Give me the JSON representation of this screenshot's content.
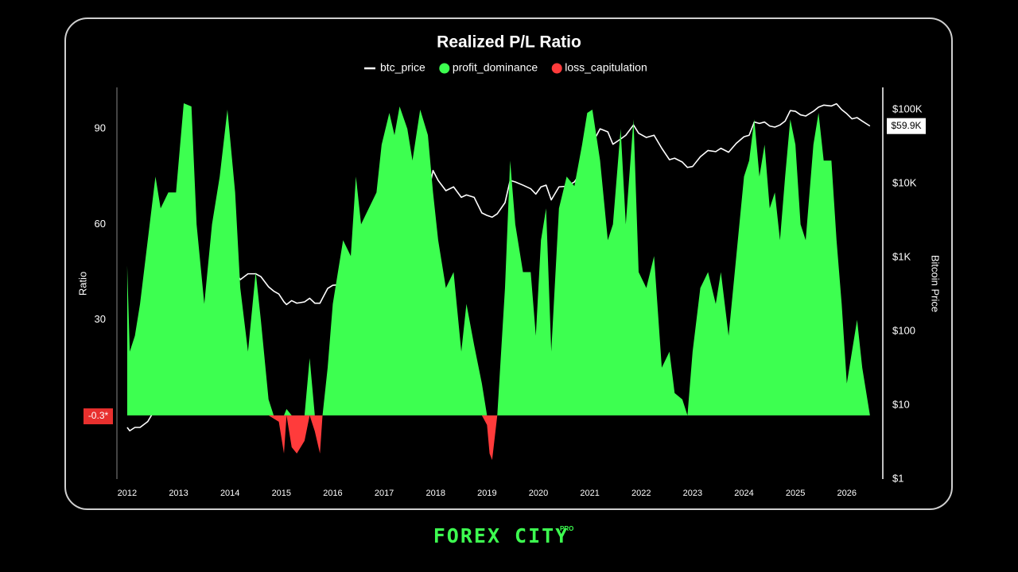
{
  "chart_data": {
    "type": "area",
    "title": "Realized P/L Ratio",
    "ylabel": "Ratio",
    "y2label": "Bitcoin Price",
    "x": [
      2012.0,
      2012.05,
      2012.15,
      2012.25,
      2012.4,
      2012.55,
      2012.65,
      2012.8,
      2012.95,
      2013.1,
      2013.25,
      2013.35,
      2013.5,
      2013.65,
      2013.8,
      2013.95,
      2014.1,
      2014.2,
      2014.35,
      2014.5,
      2014.6,
      2014.75,
      2014.85,
      2014.95,
      2015.05,
      2015.1,
      2015.2,
      2015.3,
      2015.45,
      2015.55,
      2015.65,
      2015.75,
      2015.8,
      2015.9,
      2016.0,
      2016.2,
      2016.35,
      2016.45,
      2016.55,
      2016.7,
      2016.85,
      2016.95,
      2017.1,
      2017.2,
      2017.3,
      2017.45,
      2017.55,
      2017.7,
      2017.85,
      2017.95,
      2018.05,
      2018.2,
      2018.35,
      2018.5,
      2018.6,
      2018.75,
      2018.9,
      2019.0,
      2019.05,
      2019.1,
      2019.2,
      2019.35,
      2019.45,
      2019.55,
      2019.7,
      2019.85,
      2019.95,
      2020.05,
      2020.15,
      2020.25,
      2020.4,
      2020.55,
      2020.7,
      2020.85,
      2020.95,
      2021.05,
      2021.2,
      2021.35,
      2021.45,
      2021.6,
      2021.7,
      2021.85,
      2021.95,
      2022.1,
      2022.25,
      2022.4,
      2022.55,
      2022.65,
      2022.8,
      2022.9,
      2023.0,
      2023.15,
      2023.3,
      2023.45,
      2023.55,
      2023.7,
      2023.85,
      2024.0,
      2024.1,
      2024.2,
      2024.3,
      2024.4,
      2024.5,
      2024.6,
      2024.7,
      2024.8,
      2024.9,
      2025.0,
      2025.1,
      2025.2,
      2025.35,
      2025.45,
      2025.55,
      2025.7,
      2025.8,
      2025.9,
      2026.0,
      2026.1,
      2026.2,
      2026.3,
      2026.45
    ],
    "series": [
      {
        "name": "btc_price",
        "color": "#ffffff",
        "axis": "y2",
        "mark": "line",
        "values": [
          5,
          4.5,
          5,
          5,
          6,
          9,
          11,
          12,
          13,
          30,
          120,
          110,
          90,
          110,
          200,
          800,
          650,
          500,
          600,
          600,
          550,
          400,
          350,
          320,
          250,
          230,
          260,
          240,
          250,
          280,
          240,
          240,
          280,
          380,
          420,
          430,
          450,
          650,
          650,
          620,
          700,
          950,
          1000,
          1100,
          1300,
          2500,
          2600,
          4200,
          7000,
          15000,
          11000,
          8000,
          9000,
          6500,
          7000,
          6500,
          4000,
          3700,
          3600,
          3500,
          3900,
          5500,
          11000,
          10500,
          9500,
          8500,
          7200,
          9000,
          9500,
          6000,
          9000,
          9200,
          10500,
          15000,
          25000,
          35000,
          55000,
          50000,
          34000,
          40000,
          45000,
          62000,
          48000,
          42000,
          45000,
          30000,
          21000,
          22000,
          19500,
          16500,
          17000,
          23000,
          28000,
          27000,
          30000,
          26500,
          35000,
          43000,
          45000,
          68000,
          65000,
          68000,
          60000,
          58000,
          62000,
          70000,
          97000,
          95000,
          85000,
          82000,
          95000,
          108000,
          115000,
          112000,
          120000,
          100000,
          88000,
          75000,
          78000,
          70000,
          60000
        ]
      },
      {
        "name": "profit_dominance",
        "color": "#3dff50",
        "mark": "area",
        "values": [
          47,
          20,
          25,
          35,
          55,
          75,
          65,
          70,
          70,
          98,
          97,
          60,
          35,
          60,
          75,
          96,
          70,
          40,
          20,
          45,
          30,
          5,
          0,
          0,
          0,
          2,
          0,
          0,
          0,
          18,
          0,
          0,
          0,
          15,
          35,
          55,
          50,
          75,
          60,
          65,
          70,
          85,
          95,
          88,
          97,
          90,
          80,
          96,
          88,
          70,
          55,
          40,
          45,
          20,
          35,
          22,
          10,
          0,
          0,
          0,
          0,
          40,
          80,
          60,
          45,
          45,
          25,
          55,
          65,
          20,
          65,
          75,
          72,
          85,
          95,
          96,
          80,
          55,
          60,
          90,
          60,
          93,
          45,
          40,
          50,
          15,
          20,
          7,
          5,
          0,
          20,
          40,
          45,
          35,
          45,
          25,
          50,
          75,
          80,
          93,
          75,
          85,
          65,
          70,
          55,
          75,
          93,
          85,
          60,
          55,
          85,
          95,
          80,
          80,
          55,
          35,
          10,
          20,
          30,
          15,
          0
        ]
      },
      {
        "name": "loss_capitulation",
        "color": "#ff3b3b",
        "mark": "area",
        "values": [
          null,
          null,
          null,
          null,
          null,
          null,
          null,
          null,
          null,
          null,
          null,
          null,
          null,
          null,
          null,
          null,
          null,
          null,
          null,
          null,
          null,
          0,
          -1,
          -2,
          -12,
          0,
          -10,
          -12,
          -8,
          0,
          -5,
          -12,
          0,
          null,
          null,
          null,
          null,
          null,
          null,
          null,
          null,
          null,
          null,
          null,
          null,
          null,
          null,
          null,
          null,
          null,
          null,
          null,
          null,
          null,
          null,
          null,
          0,
          -3,
          -12,
          -14,
          0,
          null,
          null,
          null,
          null,
          null,
          null,
          null,
          null,
          null,
          null,
          null,
          null,
          null,
          null,
          null,
          null,
          null,
          null,
          null,
          null,
          null,
          null,
          null,
          null,
          null,
          null,
          null,
          null,
          null,
          null,
          null,
          null,
          null,
          null,
          null,
          null,
          null,
          null,
          null,
          null,
          null,
          null,
          null,
          null,
          null,
          null,
          null,
          null,
          null,
          null,
          null,
          null,
          null,
          null,
          null,
          null,
          null,
          null,
          null,
          null
        ]
      }
    ],
    "xlim": [
      2011.8,
      2026.7
    ],
    "xticks": [
      2012,
      2013,
      2014,
      2015,
      2016,
      2017,
      2018,
      2019,
      2020,
      2021,
      2022,
      2023,
      2024,
      2025,
      2026
    ],
    "ylim": [
      -20,
      103
    ],
    "yticks": [
      30,
      60,
      90
    ],
    "y2lim": [
      1,
      200000
    ],
    "y2scale": "log",
    "y2ticks": [
      {
        "value": 1,
        "label": "$1"
      },
      {
        "value": 10,
        "label": "$10"
      },
      {
        "value": 100,
        "label": "$100"
      },
      {
        "value": 1000,
        "label": "$1K"
      },
      {
        "value": 10000,
        "label": "$10K"
      },
      {
        "value": 100000,
        "label": "$100K"
      }
    ],
    "grid": false,
    "legend": "top",
    "markers": [
      {
        "value": -0.3,
        "label": "-0.3*",
        "axis": "y",
        "color": "#e8302e"
      },
      {
        "value": 59900,
        "label": "$59.9K",
        "axis": "y2",
        "color": "#ffffff"
      }
    ]
  },
  "footer": {
    "brand": "FOREX CITY",
    "badge": "PRO"
  }
}
